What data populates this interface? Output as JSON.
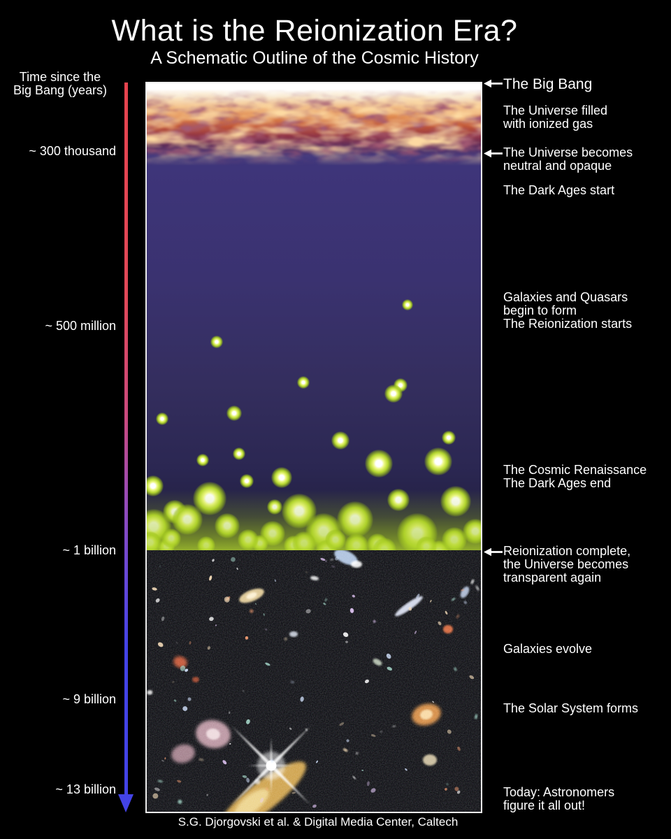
{
  "title": "What is the Reionization Era?",
  "subtitle": "A Schematic Outline of the Cosmic History",
  "credit": "S.G. Djorgovski et al. & Digital Media Center, Caltech",
  "axis": {
    "label": "Time since the\nBig Bang (years)",
    "ticks": [
      {
        "label": "~ 300 thousand"
      },
      {
        "label": "~ 500 million"
      },
      {
        "label": "~ 1 billion"
      },
      {
        "label": "~ 9 billion"
      },
      {
        "label": "~ 13 billion"
      }
    ]
  },
  "annotations": [
    {
      "id": "big-bang",
      "arrow": true,
      "text": "The Big Bang"
    },
    {
      "id": "ionized-gas",
      "arrow": false,
      "text": "The Universe filled\nwith ionized gas"
    },
    {
      "id": "neutral-opaque",
      "arrow": true,
      "text": "The Universe becomes\nneutral and opaque"
    },
    {
      "id": "dark-ages-start",
      "arrow": false,
      "text": "The Dark Ages start"
    },
    {
      "id": "galaxies-quasars",
      "arrow": false,
      "text": "Galaxies and Quasars\nbegin to form\nThe Reionization starts"
    },
    {
      "id": "cosmic-renaissance",
      "arrow": false,
      "text": "The Cosmic Renaissance\nThe Dark Ages end"
    },
    {
      "id": "reionization-complete",
      "arrow": true,
      "text": "Reionization complete,\nthe Universe becomes\ntransparent again"
    },
    {
      "id": "galaxies-evolve",
      "arrow": false,
      "text": "Galaxies evolve"
    },
    {
      "id": "solar-system",
      "arrow": false,
      "text": "The Solar System forms"
    },
    {
      "id": "today",
      "arrow": false,
      "text": "Today: Astronomers\nfigure it all out!"
    }
  ],
  "colors": {
    "timeline_top": "#e5434e",
    "timeline_bottom": "#4343e6",
    "galaxy_dot": "#b4d630",
    "fire_orange": "#e08a50",
    "dark_ages_indigo": "#3a3270",
    "panel_border": "#ededed",
    "text": "#ffffff"
  }
}
